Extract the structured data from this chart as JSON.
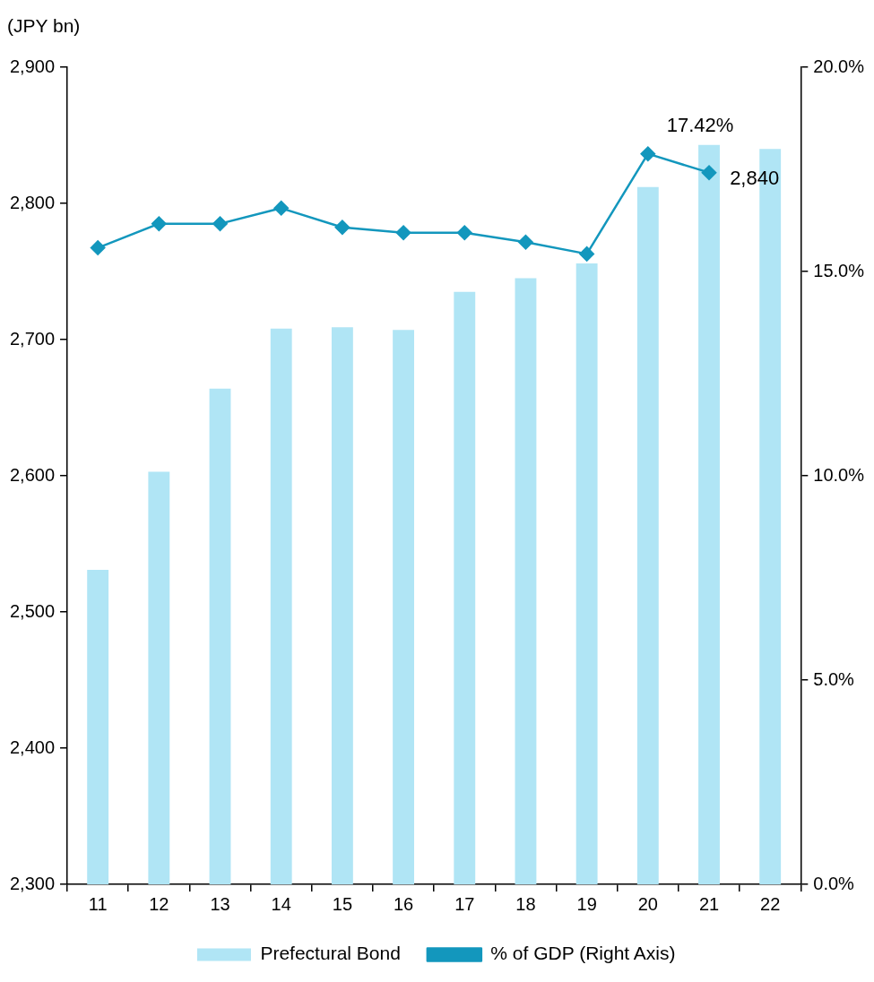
{
  "chart_data": {
    "type": "bar",
    "ylabel": "(JPY bn)",
    "categories": [
      "11",
      "12",
      "13",
      "14",
      "15",
      "16",
      "17",
      "18",
      "19",
      "20",
      "21",
      "22"
    ],
    "series": [
      {
        "name": "Prefectural Bond",
        "color": "#b0e5f5",
        "values": [
          2531,
          2603,
          2664,
          2708,
          2709,
          2707,
          2735,
          2745,
          2756,
          2812,
          2843,
          2840
        ],
        "value_labels": [
          null,
          null,
          null,
          null,
          null,
          null,
          null,
          null,
          null,
          null,
          null,
          "2,840"
        ]
      },
      {
        "name": "% of GDP (Right Axis)",
        "type": "line",
        "axis": "y2",
        "color": "#1397bd",
        "marker": "diamond",
        "values": [
          15.58,
          16.17,
          16.17,
          16.55,
          16.08,
          15.95,
          15.95,
          15.72,
          15.43,
          17.88,
          17.42,
          null
        ],
        "value_labels": [
          null,
          null,
          null,
          null,
          null,
          null,
          null,
          null,
          null,
          null,
          "17.42%",
          null
        ]
      }
    ],
    "ylim": [
      2300,
      2900
    ],
    "yticks": [
      {
        "value": 2300,
        "label": "2,300"
      },
      {
        "value": 2400,
        "label": "2,400"
      },
      {
        "value": 2500,
        "label": "2,500"
      },
      {
        "value": 2600,
        "label": "2,600"
      },
      {
        "value": 2700,
        "label": "2,700"
      },
      {
        "value": 2800,
        "label": "2,800"
      },
      {
        "value": 2900,
        "label": "2,900"
      }
    ],
    "y2lim": [
      0,
      20
    ],
    "y2ticks": [
      {
        "value": 0,
        "label": "0.0%"
      },
      {
        "value": 5,
        "label": "5.0%"
      },
      {
        "value": 10,
        "label": "10.0%"
      },
      {
        "value": 15,
        "label": "15.0%"
      },
      {
        "value": 20,
        "label": "20.0%"
      }
    ],
    "grid": false,
    "legend": "bottom"
  }
}
